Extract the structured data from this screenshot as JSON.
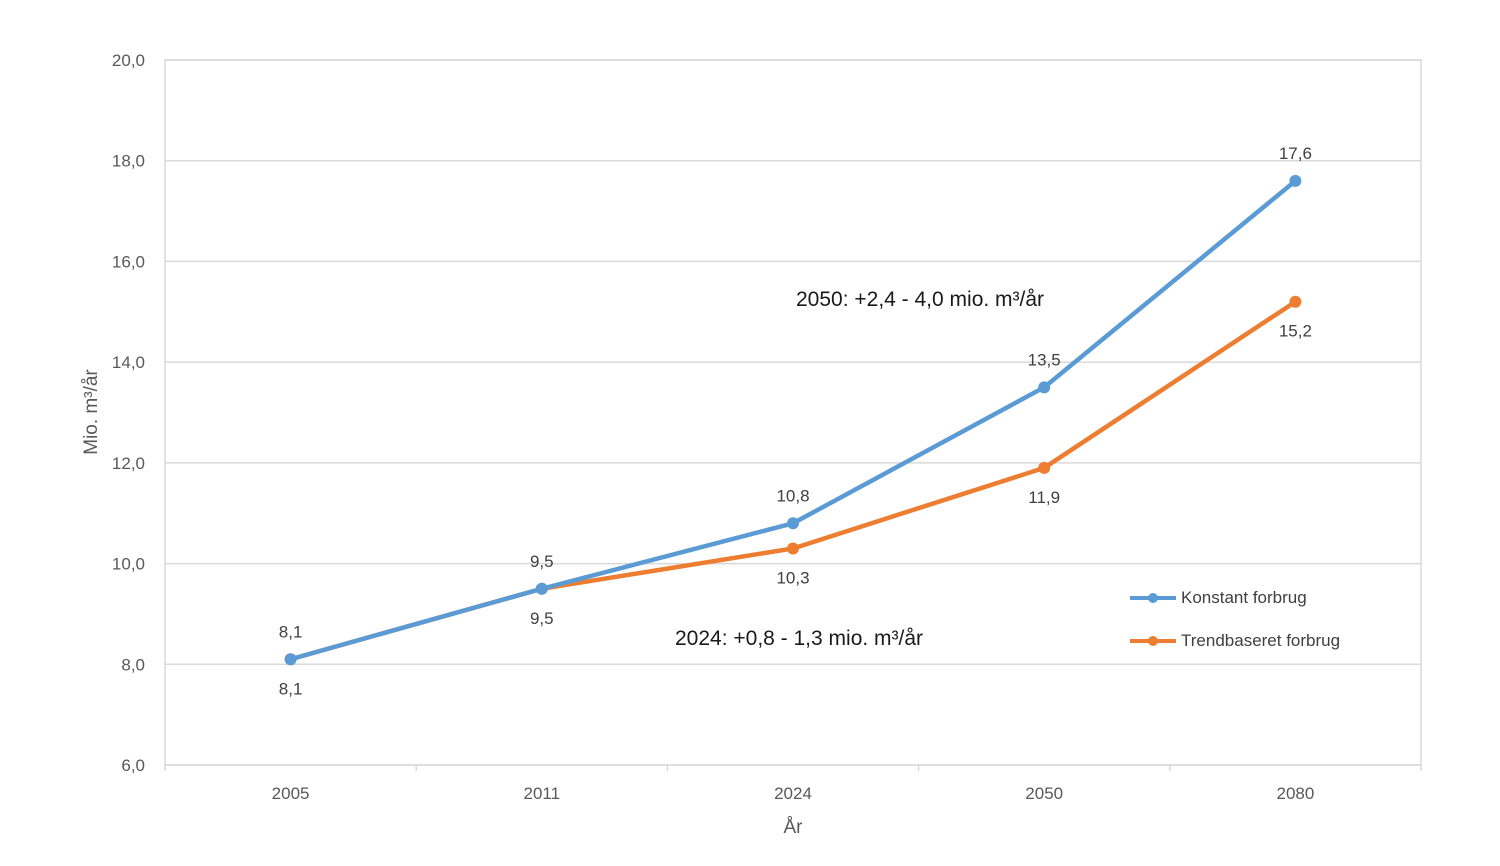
{
  "chart_data": {
    "type": "line",
    "categories": [
      "2005",
      "2011",
      "2024",
      "2050",
      "2080"
    ],
    "xlabel": "År",
    "ylabel": "Mio. m³/år",
    "ylim": [
      6.0,
      20.0
    ],
    "ytick_step": 2.0,
    "yticks": [
      "6,0",
      "8,0",
      "10,0",
      "12,0",
      "14,0",
      "16,0",
      "18,0",
      "20,0"
    ],
    "grid": "horizontal",
    "legend_position": "bottom-right",
    "series": [
      {
        "name": "Konstant forbrug",
        "color": "#5b9bd5",
        "values": [
          8.1,
          9.5,
          10.8,
          13.5,
          17.6
        ],
        "value_labels": [
          "8,1",
          "9,5",
          "10,8",
          "13,5",
          "17,6"
        ],
        "label_position": [
          "above",
          "above",
          "above",
          "above",
          "above"
        ]
      },
      {
        "name": "Trendbaseret forbrug",
        "color": "#ed7d31",
        "values": [
          8.1,
          9.5,
          10.3,
          11.9,
          15.2
        ],
        "value_labels": [
          "8,1",
          "9,5",
          "10,3",
          "11,9",
          "15,2"
        ],
        "label_position": [
          "below",
          "below",
          "below",
          "below",
          "below"
        ]
      }
    ],
    "annotations": [
      "2050: +2,4 - 4,0 mio. m³/år",
      "2024: +0,8 - 1,3 mio. m³/år"
    ]
  }
}
